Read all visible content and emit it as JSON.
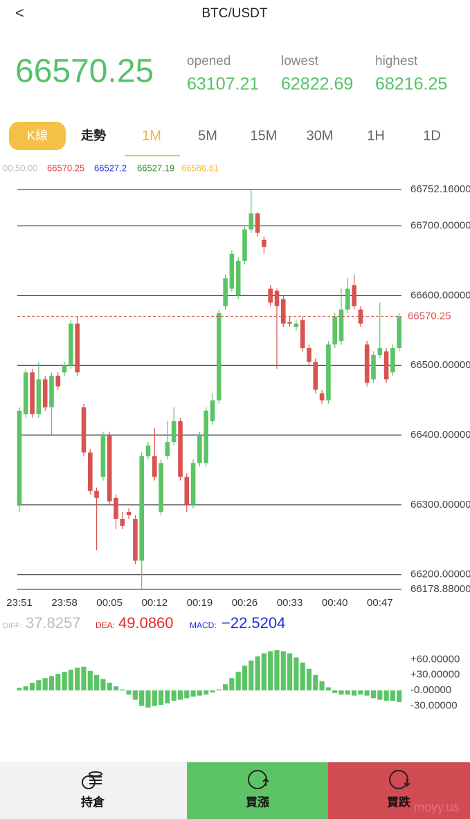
{
  "header": {
    "back": "<",
    "title": "BTC/USDT"
  },
  "ticker": {
    "price": "66570.25",
    "opened_label": "opened",
    "opened": "63107.21",
    "lowest_label": "lowest",
    "lowest": "62822.69",
    "highest_label": "highest",
    "highest": "68216.25"
  },
  "tabs": [
    "K線",
    "走勢",
    "1M",
    "5M",
    "15M",
    "30M",
    "1H",
    "1D"
  ],
  "legend": {
    "time": "00:50:00",
    "values": [
      "66570.25",
      "66527.2",
      "66527.19",
      "66586.61"
    ]
  },
  "indicators": {
    "diff_label": "DIFF:",
    "diff": "37.8257",
    "dea_label": "DEA:",
    "dea": "49.0860",
    "macd_label": "MACD:",
    "macd": "−22.5204"
  },
  "footer": {
    "buttons": [
      "持倉",
      "買漲",
      "買跌"
    ],
    "watermark": "moyy.us"
  },
  "chart_data": [
    {
      "type": "candlestick",
      "up_color": "#5cc466",
      "down_color": "#d9534f",
      "categories": [
        "23:51",
        null,
        null,
        null,
        null,
        null,
        null,
        "23:58",
        null,
        null,
        null,
        null,
        null,
        null,
        "00:05",
        null,
        null,
        null,
        null,
        null,
        null,
        "00:12",
        null,
        null,
        null,
        null,
        null,
        null,
        "00:19",
        null,
        null,
        null,
        null,
        null,
        null,
        "00:26",
        null,
        null,
        null,
        null,
        null,
        null,
        "00:33",
        null,
        null,
        null,
        null,
        null,
        null,
        "00:40",
        null,
        null,
        null,
        null,
        null,
        null,
        "00:47",
        null,
        null,
        null
      ],
      "open": [
        66300,
        66430,
        66490,
        66430,
        66480,
        66440,
        66485,
        66490,
        66500,
        66560,
        66440,
        66375,
        66320,
        66340,
        66400,
        66310,
        66280,
        66290,
        66280,
        66220,
        66370,
        66370,
        66290,
        66370,
        66390,
        66420,
        66340,
        66300,
        66360,
        66360,
        66420,
        66450,
        66585,
        66610,
        66600,
        66650,
        66695,
        66718,
        66680,
        66610,
        66607,
        66595,
        66562,
        66555,
        66565,
        66525,
        66505,
        66460,
        66450,
        66530,
        66535,
        66580,
        66615,
        66580,
        66530,
        66480,
        66515,
        66520,
        66490,
        66525
      ],
      "high": [
        66440,
        66495,
        66495,
        66505,
        66485,
        66490,
        66490,
        66505,
        66565,
        66570,
        66445,
        66380,
        66325,
        66405,
        66405,
        66315,
        66290,
        66295,
        66285,
        66375,
        66390,
        66410,
        66365,
        66420,
        66440,
        66425,
        66345,
        66365,
        66405,
        66440,
        66460,
        66580,
        66630,
        66665,
        66655,
        66700,
        66752.16,
        66720,
        66685,
        66615,
        66610,
        66600,
        66570,
        66565,
        66570,
        66530,
        66510,
        66465,
        66535,
        66575,
        66610,
        66625,
        66630,
        66585,
        66535,
        66520,
        66590,
        66525,
        66530,
        66575
      ],
      "low": [
        66290,
        66425,
        66425,
        66425,
        66435,
        66400,
        66465,
        66485,
        66495,
        66485,
        66370,
        66315,
        66235,
        66335,
        66300,
        66265,
        66265,
        66280,
        66215,
        66180,
        66365,
        66335,
        66285,
        66365,
        66385,
        66335,
        66290,
        66295,
        66355,
        66355,
        66415,
        66445,
        66580,
        66605,
        66595,
        66645,
        66690,
        66685,
        66660,
        66585,
        66495,
        66555,
        66555,
        66550,
        66520,
        66500,
        66460,
        66445,
        66445,
        66525,
        66530,
        66575,
        66580,
        66555,
        66470,
        66475,
        66510,
        66475,
        66485,
        66520
      ],
      "close": [
        66435,
        66490,
        66430,
        66480,
        66440,
        66485,
        66470,
        66500,
        66560,
        66490,
        66375,
        66320,
        66310,
        66400,
        66305,
        66280,
        66270,
        66285,
        66220,
        66370,
        66385,
        66340,
        66360,
        66390,
        66420,
        66340,
        66300,
        66360,
        66400,
        66435,
        66450,
        66575,
        66625,
        66660,
        66650,
        66695,
        66718,
        66690,
        66670,
        66590,
        66585,
        66560,
        66560,
        66560,
        66525,
        66505,
        66465,
        66450,
        66530,
        66570,
        66580,
        66610,
        66585,
        66560,
        66475,
        66515,
        66525,
        66480,
        66525,
        66570.25
      ],
      "last_price": 66570.25,
      "last_price_color": "#d9534f",
      "ylim": [
        66178.88,
        66752.16
      ],
      "yticks": [
        {
          "value": 66752.16,
          "label": "66752.16000"
        },
        {
          "value": 66700,
          "label": "66700.00000"
        },
        {
          "value": 66600,
          "label": "66600.00000"
        },
        {
          "value": 66500,
          "label": "66500.00000"
        },
        {
          "value": 66400,
          "label": "66400.00000"
        },
        {
          "value": 66300,
          "label": "66300.00000"
        },
        {
          "value": 66200,
          "label": "66200.00000"
        },
        {
          "value": 66178.88,
          "label": "66178.88000"
        }
      ],
      "grid": true
    },
    {
      "type": "bar",
      "color": "#5cc466",
      "values": [
        5,
        8,
        15,
        20,
        24,
        28,
        32,
        36,
        40,
        44,
        46,
        38,
        30,
        22,
        15,
        8,
        2,
        -8,
        -18,
        -30,
        -33,
        -30,
        -28,
        -25,
        -20,
        -18,
        -15,
        -12,
        -10,
        -8,
        -4,
        2,
        12,
        24,
        36,
        48,
        58,
        66,
        72,
        76,
        78,
        76,
        72,
        64,
        54,
        42,
        30,
        18,
        6,
        -5,
        -8,
        -8,
        -10,
        -8,
        -10,
        -15,
        -18,
        -20,
        -20,
        -22.5204
      ],
      "ylim": [
        -40,
        90
      ],
      "yticks": [
        {
          "value": 60,
          "label": "+60.00000"
        },
        {
          "value": 30,
          "label": "+30.00000"
        },
        {
          "value": 0,
          "label": "-0.00000"
        },
        {
          "value": -30,
          "label": "-30.00000"
        }
      ]
    }
  ]
}
